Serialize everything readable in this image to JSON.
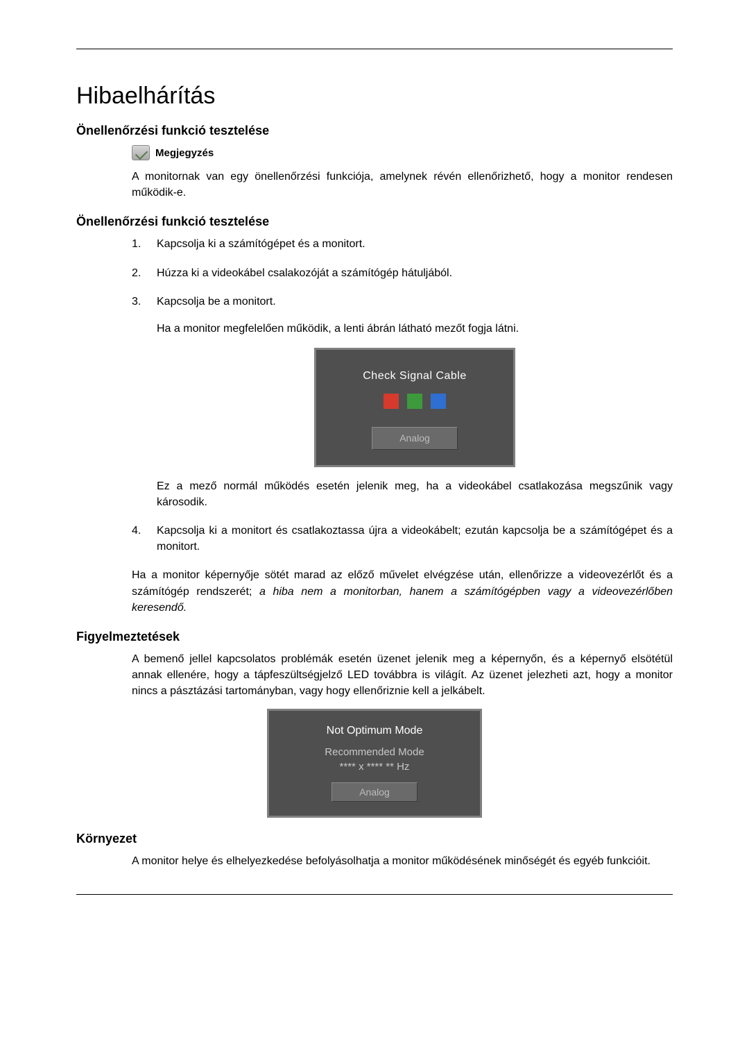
{
  "page": {
    "main_title": "Hibaelhárítás",
    "section1_heading": "Önellenőrzési funkció tesztelése",
    "note_label": "Megjegyzés",
    "intro_text": "A monitornak van egy önellenőrzési funkciója, amelynek révén ellenőrizhető, hogy a monitor rendesen működik-e.",
    "section2_heading": "Önellenőrzési funkció tesztelése",
    "steps": [
      "Kapcsolja ki a számítógépet és a monitort.",
      "Húzza ki a videokábel csalakozóját a számítógép hátuljából.",
      "Kapcsolja be a monitort."
    ],
    "step3_sub1": "Ha a monitor megfelelően működik, a lenti ábrán látható mezőt fogja látni.",
    "step3_sub2": "Ez a mező normál működés esetén jelenik meg, ha a videokábel csatlakozása megszűnik vagy károsodik.",
    "step4": "Kapcsolja ki a monitort és csatlakoztassa újra a videokábelt; ezután kapcsolja be a számítógépet és a monitort.",
    "after_steps_text": "Ha a monitor képernyője sötét marad az előző művelet elvégzése után, ellenőrizze a videovezérlőt és a számítógép rendszerét; ",
    "after_steps_italic": "a hiba nem a monitorban, hanem a számítógépben vagy a videovezérlőben keresendő.",
    "warnings_heading": "Figyelmeztetések",
    "warnings_text": "A bemenő jellel kapcsolatos problémák esetén üzenet jelenik meg a képernyőn, és a képernyő elsötétül annak ellenére, hogy a tápfeszültségjelző LED továbbra is világít. Az üzenet jelezheti azt, hogy a monitor nincs a pásztázási tartományban, vagy hogy ellenőriznie kell a jelkábelt.",
    "env_heading": "Környezet",
    "env_text": "A monitor helye és elhelyezkedése befolyásolhatja a monitor működésének minőségét és egyéb funkcióit."
  },
  "osd1": {
    "title": "Check Signal Cable",
    "button": "Analog",
    "square_colors": [
      "#d63a2d",
      "#3c9a3c",
      "#2f6fd1"
    ],
    "bg_color": "#4f4f4f",
    "border_color": "#808080"
  },
  "osd2": {
    "line1": "Not  Optimum Mode",
    "line2": "Recommended Mode\n**** x ****   ** Hz",
    "button": "Analog",
    "bg_color": "#4f4f4f",
    "border_color": "#808080"
  },
  "colors": {
    "text": "#000000",
    "rule": "#000000",
    "osd_text_white": "#ffffff",
    "osd_text_muted": "#bdbdbd"
  },
  "typography": {
    "title_fontsize": 34,
    "heading_fontsize": 18,
    "body_fontsize": 16
  }
}
